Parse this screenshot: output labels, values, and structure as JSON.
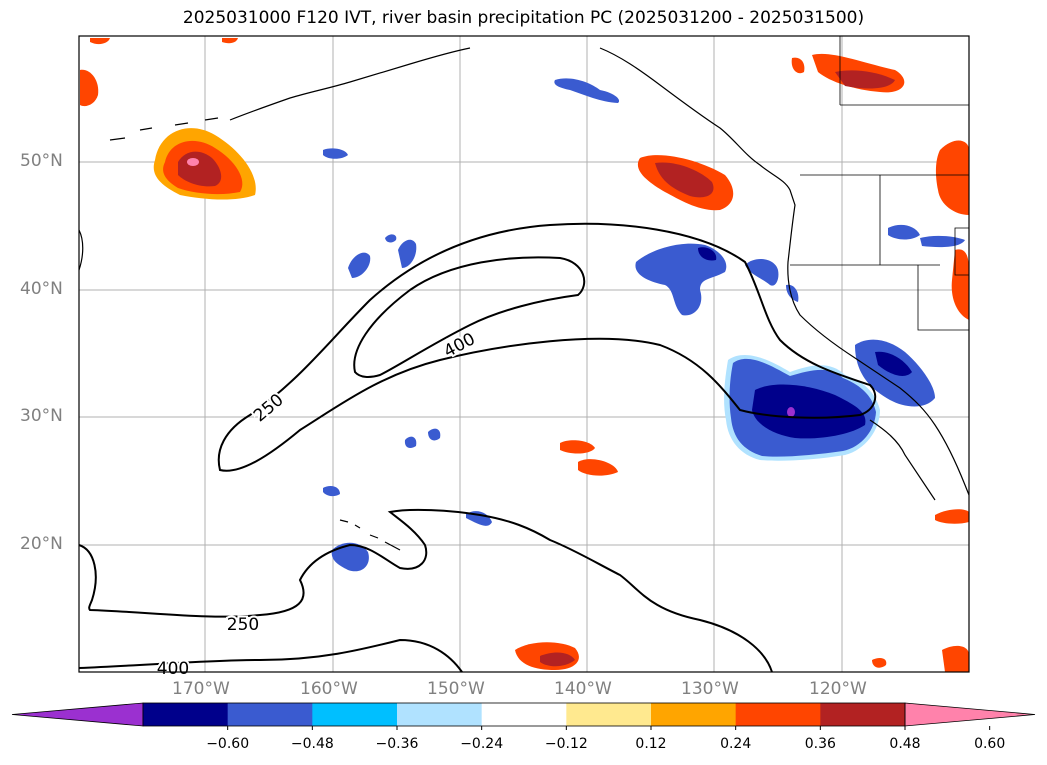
{
  "title": "2025031000 F120 IVT, river basin precipitation PC (2025031200 - 2025031500)",
  "lat_labels": [
    "50°N",
    "40°N",
    "30°N",
    "20°N"
  ],
  "lon_labels": [
    "170°W",
    "160°W",
    "150°W",
    "140°W",
    "130°W",
    "120°W"
  ],
  "contour_labels": [
    "250",
    "400",
    "250",
    "400"
  ],
  "colorbar": {
    "ticks": [
      "−0.60",
      "−0.48",
      "−0.36",
      "−0.24",
      "−0.12",
      "0.12",
      "0.24",
      "0.36",
      "0.48",
      "0.60"
    ],
    "colors": [
      "#9b30d0",
      "#00008b",
      "#3a5bd0",
      "#00bfff",
      "#b0e2ff",
      "#ffffff",
      "#ffe98f",
      "#ffa500",
      "#ff4500",
      "#b22222",
      "#ff82ab"
    ]
  }
}
